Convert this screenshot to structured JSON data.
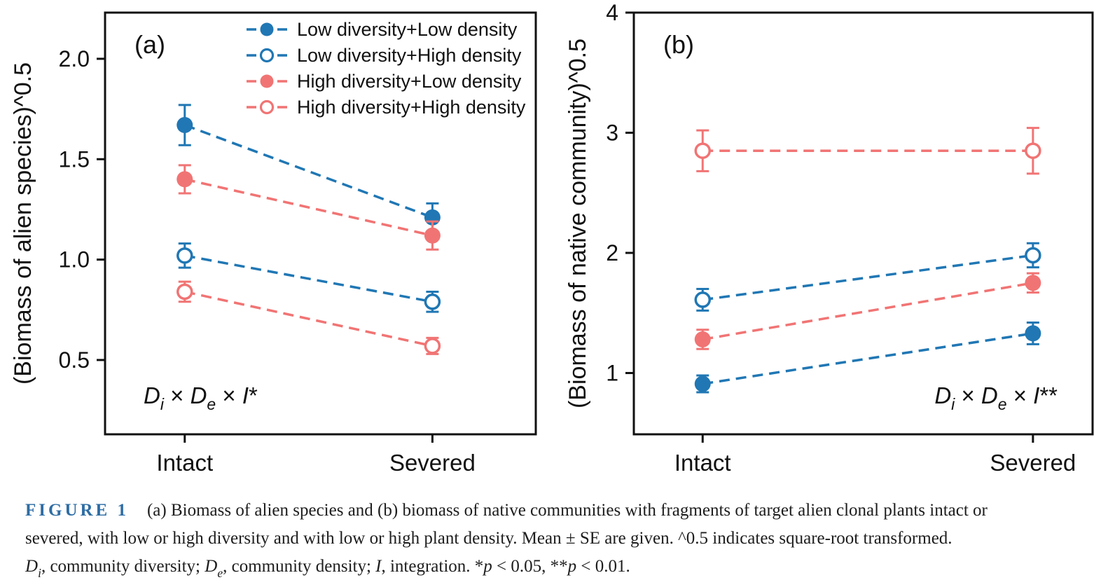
{
  "colors": {
    "blue": "#2077b4",
    "red": "#f17474",
    "figure_label_blue": "#2e6da4",
    "axis_text": "#111111",
    "background": "#ffffff"
  },
  "chart_data": [
    {
      "type": "line",
      "panel_label": "(a)",
      "ylabel": "(Biomass of alien species)^0.5",
      "xlabel": "",
      "categories": [
        "Intact",
        "Severed"
      ],
      "yticks": [
        0.5,
        1.0,
        1.5,
        2.0
      ],
      "ytick_labels": [
        "0.5",
        "1.0",
        "1.5",
        "2.0"
      ],
      "ylim": [
        0.13,
        2.23
      ],
      "grid": false,
      "legend_position": "top-right-inside",
      "show_legend": true,
      "annotation": {
        "text": "D_i × D_e × I*",
        "position": "bottom-left",
        "parts": [
          {
            "t": "D",
            "i": true
          },
          {
            "t": "i",
            "i": true,
            "sub": true
          },
          {
            "t": " × "
          },
          {
            "t": "D",
            "i": true
          },
          {
            "t": "e",
            "i": true,
            "sub": true
          },
          {
            "t": " × "
          },
          {
            "t": "I",
            "i": true
          },
          {
            "t": "*"
          }
        ]
      },
      "series": [
        {
          "name": "Low diversity+Low density",
          "marker": "filled",
          "color": "#2077b4",
          "values": [
            1.67,
            1.21
          ],
          "se": [
            0.1,
            0.07
          ]
        },
        {
          "name": "Low diversity+High density",
          "marker": "open",
          "color": "#2077b4",
          "values": [
            1.02,
            0.79
          ],
          "se": [
            0.06,
            0.05
          ]
        },
        {
          "name": "High diversity+Low density",
          "marker": "filled",
          "color": "#f17474",
          "values": [
            1.4,
            1.12
          ],
          "se": [
            0.07,
            0.07
          ]
        },
        {
          "name": "High diversity+High density",
          "marker": "open",
          "color": "#f17474",
          "values": [
            0.84,
            0.57
          ],
          "se": [
            0.05,
            0.04
          ]
        }
      ]
    },
    {
      "type": "line",
      "panel_label": "(b)",
      "ylabel": "(Biomass of native community)^0.5",
      "xlabel": "",
      "categories": [
        "Intact",
        "Severed"
      ],
      "yticks": [
        1,
        2,
        3,
        4
      ],
      "ytick_labels": [
        "1",
        "2",
        "3",
        "4"
      ],
      "ylim": [
        0.49,
        4.0
      ],
      "grid": false,
      "legend_position": "none",
      "show_legend": false,
      "annotation": {
        "text": "D_i × D_e × I**",
        "position": "bottom-right",
        "parts": [
          {
            "t": "D",
            "i": true
          },
          {
            "t": "i",
            "i": true,
            "sub": true
          },
          {
            "t": " × "
          },
          {
            "t": "D",
            "i": true
          },
          {
            "t": "e",
            "i": true,
            "sub": true
          },
          {
            "t": " × "
          },
          {
            "t": "I",
            "i": true
          },
          {
            "t": "**"
          }
        ]
      },
      "series": [
        {
          "name": "Low diversity+Low density",
          "marker": "filled",
          "color": "#2077b4",
          "values": [
            0.91,
            1.33
          ],
          "se": [
            0.07,
            0.09
          ]
        },
        {
          "name": "Low diversity+High density",
          "marker": "open",
          "color": "#2077b4",
          "values": [
            1.61,
            1.98
          ],
          "se": [
            0.09,
            0.1
          ]
        },
        {
          "name": "High diversity+Low density",
          "marker": "filled",
          "color": "#f17474",
          "values": [
            1.28,
            1.75
          ],
          "se": [
            0.08,
            0.08
          ]
        },
        {
          "name": "High diversity+High density",
          "marker": "open",
          "color": "#f17474",
          "values": [
            2.85,
            2.85
          ],
          "se": [
            0.17,
            0.19
          ]
        }
      ]
    }
  ],
  "caption": {
    "label": "FIGURE 1",
    "lines": [
      [
        {
          "t": "(a) Biomass of alien species and (b) biomass of native communities with fragments of target alien clonal plants intact or"
        }
      ],
      [
        {
          "t": "severed, with low or high diversity and with low or high plant density. Mean ± SE are given. ^0.5 indicates square-root transformed."
        }
      ],
      [
        {
          "t": "D",
          "i": true
        },
        {
          "t": "i",
          "i": true,
          "sub": true
        },
        {
          "t": ", community diversity; "
        },
        {
          "t": "D",
          "i": true
        },
        {
          "t": "e",
          "i": true,
          "sub": true
        },
        {
          "t": ", community density; "
        },
        {
          "t": "I",
          "i": true
        },
        {
          "t": ", integration. *"
        },
        {
          "t": "p",
          "i": true
        },
        {
          "t": " < 0.05, **"
        },
        {
          "t": "p",
          "i": true
        },
        {
          "t": " < 0.01."
        }
      ]
    ]
  }
}
